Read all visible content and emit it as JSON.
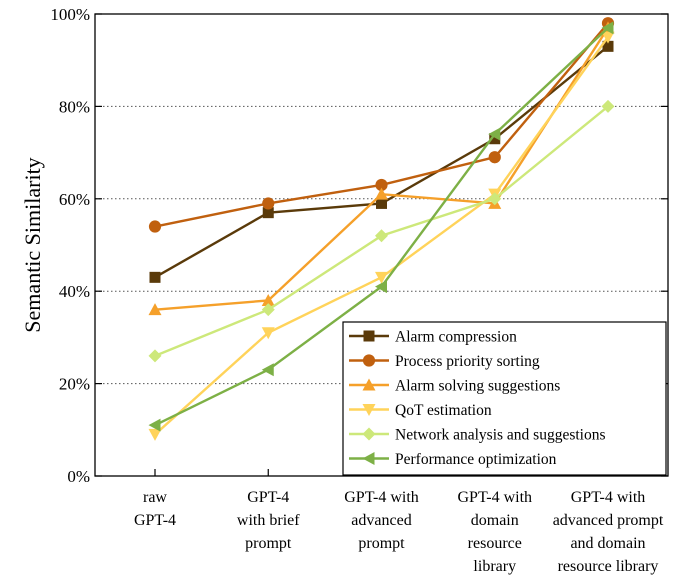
{
  "chart_data": {
    "type": "line",
    "title": "",
    "xlabel": "",
    "ylabel": "Semantic Similarity",
    "ylim": [
      0,
      100
    ],
    "y_ticks": [
      "0%",
      "20%",
      "40%",
      "60%",
      "80%",
      "100%"
    ],
    "grid": "horizontal dotted",
    "legend_position": "bottom-right",
    "categories": [
      [
        "raw",
        "GPT-4"
      ],
      [
        "GPT-4",
        "with brief",
        "prompt"
      ],
      [
        "GPT-4 with",
        "advanced",
        "prompt"
      ],
      [
        "GPT-4 with",
        "domain",
        "resource",
        "library"
      ],
      [
        "GPT-4 with",
        "advanced prompt",
        "and domain",
        "resource library"
      ]
    ],
    "series": [
      {
        "name": "Alarm compression",
        "color": "#5a3a0a",
        "marker": "square",
        "values": [
          43,
          57,
          59,
          73,
          93
        ]
      },
      {
        "name": "Process priority sorting",
        "color": "#c0600f",
        "marker": "circle",
        "values": [
          54,
          59,
          63,
          69,
          98
        ]
      },
      {
        "name": "Alarm solving suggestions",
        "color": "#f5a02a",
        "marker": "triangle-up",
        "values": [
          36,
          38,
          61,
          59,
          97
        ]
      },
      {
        "name": " QoT estimation",
        "color": "#ffd35a",
        "marker": "triangle-down",
        "values": [
          9,
          31,
          43,
          61,
          95
        ]
      },
      {
        "name": "Network analysis and suggestions",
        "color": "#cde87a",
        "marker": "diamond",
        "values": [
          26,
          36,
          52,
          60,
          80
        ]
      },
      {
        "name": "Performance optimization",
        "color": "#7db046",
        "marker": "triangle-left",
        "values": [
          11,
          23,
          41,
          74,
          97
        ]
      }
    ]
  }
}
